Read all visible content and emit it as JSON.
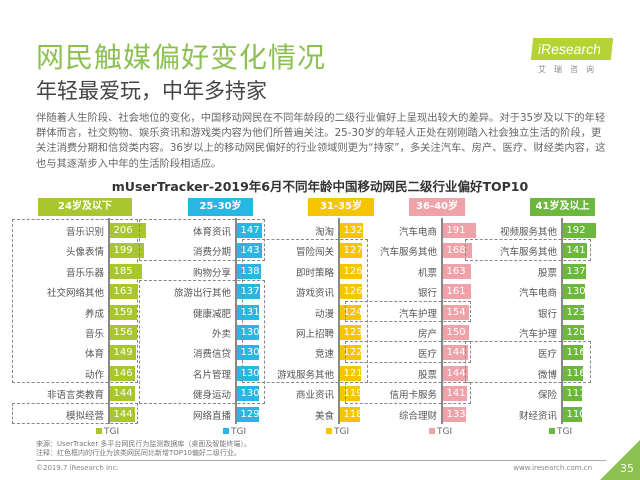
{
  "header": {
    "title": "网民触媒偏好变化情况",
    "subtitle": "年轻最爱玩，中年多持家",
    "logo": "iResearch",
    "logo_sub": "艾瑞咨询"
  },
  "paragraph": "伴随着人生阶段、社会地位的变化，中国移动网民在不同年龄段的二级行业偏好上呈现出较大的差异。对于35岁及以下的年轻群体而言，社交购物、娱乐资讯和游戏类内容为他们所普遍关注。25-30岁的年轻人正处在刚刚踏入社会独立生活的阶段，更关注消费分期和信贷类内容。36岁以上的移动网民偏好的行业领域则更为“持家”，多关注汽车、房产、医疗、财经类内容，这也与其逐渐步入中年的生活阶段相适应。",
  "chart_data": {
    "type": "bar",
    "orientation": "horizontal",
    "title": "mUserTracker-2019年6月不同年龄中国移动网民二级行业偏好TOP10",
    "legend": "TGI",
    "groups": [
      {
        "name": "24岁及以下",
        "color": "#a9c62e",
        "categories": [
          "音乐识别",
          "头像表情",
          "音乐乐器",
          "社交网络其他",
          "养成",
          "音乐",
          "体育",
          "动作",
          "非语言类教育",
          "模拟经营"
        ],
        "values": [
          206,
          199,
          185,
          163,
          159,
          156,
          149,
          146,
          144,
          144
        ],
        "highlighted_boxes": [
          [
            0,
            7
          ],
          [
            9,
            9
          ]
        ]
      },
      {
        "name": "25-30岁",
        "color": "#2ab6e2",
        "categories": [
          "体育资讯",
          "消费分期",
          "购物分享",
          "旅游出行其他",
          "健康减肥",
          "外卖",
          "消费信贷",
          "名片管理",
          "健身运动",
          "网络直播"
        ],
        "values": [
          147,
          143,
          138,
          137,
          131,
          130,
          130,
          130,
          130,
          129
        ],
        "highlighted_boxes": [
          [
            0,
            1
          ],
          [
            3,
            8
          ]
        ]
      },
      {
        "name": "31-35岁",
        "color": "#f6c500",
        "categories": [
          "淘淘",
          "冒险闯关",
          "即时策略",
          "游戏资讯",
          "动漫",
          "网上招聘",
          "竞速",
          "游戏服务其他",
          "商业资讯",
          "美食"
        ],
        "values": [
          132,
          127,
          126,
          126,
          124,
          123,
          122,
          121,
          119,
          118
        ],
        "highlighted_boxes": [
          [
            1,
            7
          ]
        ]
      },
      {
        "name": "36-40岁",
        "color": "#f0a2a9",
        "categories": [
          "汽车电商",
          "汽车服务其他",
          "机票",
          "银行",
          "汽车护理",
          "房产",
          "医疗",
          "股票",
          "信用卡服务",
          "综合理财"
        ],
        "values": [
          191,
          168,
          163,
          161,
          154,
          150,
          144,
          144,
          141,
          133
        ],
        "highlighted_boxes": [
          [
            4,
            4
          ],
          [
            6,
            6
          ],
          [
            8,
            8
          ]
        ]
      },
      {
        "name": "41岁及以上",
        "color": "#6cb83c",
        "categories": [
          "视频服务其他",
          "汽车服务其他",
          "股票",
          "汽车电商",
          "银行",
          "汽车护理",
          "医疗",
          "微博",
          "保险",
          "财经资讯"
        ],
        "values": [
          192,
          141,
          137,
          130,
          123,
          120,
          116,
          116,
          111,
          110
        ],
        "highlighted_boxes": [
          [
            1,
            1
          ],
          [
            6,
            7
          ]
        ]
      }
    ]
  },
  "footer": {
    "source": "来源：UserTracker 多平台网民行为监测数据库（桌面及智能终端）。",
    "note": "注释：红色框内的行业为该类网民同比新增TOP10偏好二级行业。",
    "copyright": "©2019.7 iResearch Inc.",
    "url": "www.iresearch.com.cn",
    "page": "35"
  }
}
